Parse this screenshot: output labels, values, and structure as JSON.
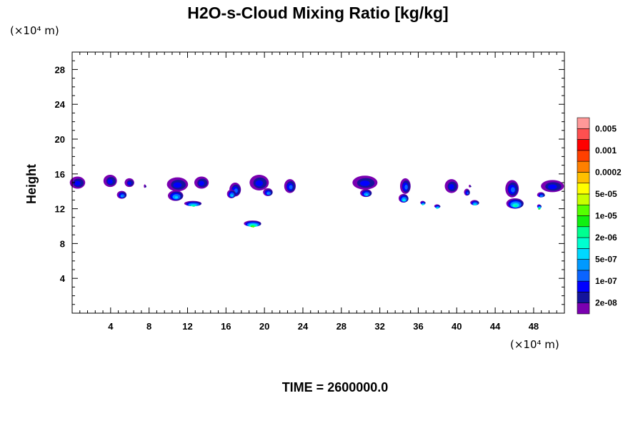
{
  "chart_data": {
    "type": "heatmap",
    "title": "H2O-s-Cloud Mixing Ratio [kg/kg]",
    "ylabel": "Height",
    "y_unit": "(×10⁴ m)",
    "x_unit": "(×10⁴ m)",
    "time_label": "TIME = 2600000.0",
    "xlim": [
      0,
      51.2
    ],
    "ylim": [
      0,
      30
    ],
    "x_ticks": [
      "4",
      "8",
      "12",
      "16",
      "20",
      "24",
      "28",
      "32",
      "36",
      "40",
      "44",
      "48"
    ],
    "y_ticks": [
      "4",
      "8",
      "12",
      "16",
      "20",
      "24",
      "28"
    ],
    "colorbar": {
      "labels": [
        "0.005",
        "0.001",
        "0.0002",
        "5e-05",
        "1e-05",
        "2e-06",
        "5e-07",
        "1e-07",
        "2e-08"
      ],
      "colors": [
        "#7a00b0",
        "#14149c",
        "#0000ff",
        "#0a64ff",
        "#0099ff",
        "#00d8ff",
        "#00ffd0",
        "#00ff90",
        "#10f010",
        "#55ff00",
        "#c8ff00",
        "#ffff00",
        "#ffc000",
        "#ff8000",
        "#ff4000",
        "#ff0000",
        "#ff5050",
        "#ff9999"
      ]
    },
    "clouds": [
      {
        "x": 0.6,
        "y": 15.0,
        "w": 1.6,
        "h": 1.4,
        "level": 2
      },
      {
        "x": 4.0,
        "y": 15.2,
        "w": 1.4,
        "h": 1.4,
        "level": 2
      },
      {
        "x": 5.2,
        "y": 13.6,
        "w": 1.0,
        "h": 0.9,
        "level": 4
      },
      {
        "x": 6.0,
        "y": 15.0,
        "w": 1.0,
        "h": 1.0,
        "level": 2
      },
      {
        "x": 7.6,
        "y": 14.6,
        "w": 0.2,
        "h": 0.4,
        "level": 1
      },
      {
        "x": 11.0,
        "y": 14.8,
        "w": 2.2,
        "h": 1.6,
        "level": 2
      },
      {
        "x": 13.5,
        "y": 15.0,
        "w": 1.5,
        "h": 1.4,
        "level": 2
      },
      {
        "x": 10.8,
        "y": 13.5,
        "w": 1.6,
        "h": 1.2,
        "level": 5
      },
      {
        "x": 12.6,
        "y": 12.6,
        "w": 1.8,
        "h": 0.6,
        "level": 7
      },
      {
        "x": 17.0,
        "y": 14.2,
        "w": 1.2,
        "h": 1.6,
        "level": 3
      },
      {
        "x": 16.6,
        "y": 13.7,
        "w": 0.9,
        "h": 1.0,
        "level": 5
      },
      {
        "x": 19.5,
        "y": 15.0,
        "w": 2.0,
        "h": 1.8,
        "level": 2
      },
      {
        "x": 20.4,
        "y": 13.9,
        "w": 1.0,
        "h": 0.9,
        "level": 4
      },
      {
        "x": 22.7,
        "y": 14.6,
        "w": 1.2,
        "h": 1.6,
        "level": 3
      },
      {
        "x": 18.8,
        "y": 10.3,
        "w": 1.8,
        "h": 0.7,
        "level": 9
      },
      {
        "x": 30.5,
        "y": 15.0,
        "w": 2.6,
        "h": 1.6,
        "level": 2
      },
      {
        "x": 30.6,
        "y": 13.8,
        "w": 1.2,
        "h": 0.9,
        "level": 5
      },
      {
        "x": 34.7,
        "y": 14.6,
        "w": 1.1,
        "h": 1.8,
        "level": 3
      },
      {
        "x": 34.5,
        "y": 13.2,
        "w": 1.0,
        "h": 1.0,
        "level": 6
      },
      {
        "x": 36.5,
        "y": 12.7,
        "w": 0.5,
        "h": 0.4,
        "level": 6
      },
      {
        "x": 38.0,
        "y": 12.3,
        "w": 0.6,
        "h": 0.4,
        "level": 6
      },
      {
        "x": 39.5,
        "y": 14.6,
        "w": 1.4,
        "h": 1.6,
        "level": 2
      },
      {
        "x": 41.4,
        "y": 14.6,
        "w": 0.2,
        "h": 0.3,
        "level": 1
      },
      {
        "x": 41.1,
        "y": 13.9,
        "w": 0.6,
        "h": 0.8,
        "level": 3
      },
      {
        "x": 41.9,
        "y": 12.7,
        "w": 0.9,
        "h": 0.6,
        "level": 6
      },
      {
        "x": 45.8,
        "y": 14.3,
        "w": 1.4,
        "h": 2.0,
        "level": 3
      },
      {
        "x": 46.1,
        "y": 12.6,
        "w": 1.8,
        "h": 1.2,
        "level": 7
      },
      {
        "x": 48.6,
        "y": 12.3,
        "w": 0.4,
        "h": 0.4,
        "level": 8
      },
      {
        "x": 50.0,
        "y": 14.6,
        "w": 2.4,
        "h": 1.4,
        "level": 2
      },
      {
        "x": 48.8,
        "y": 13.6,
        "w": 0.8,
        "h": 0.6,
        "level": 4
      }
    ]
  }
}
